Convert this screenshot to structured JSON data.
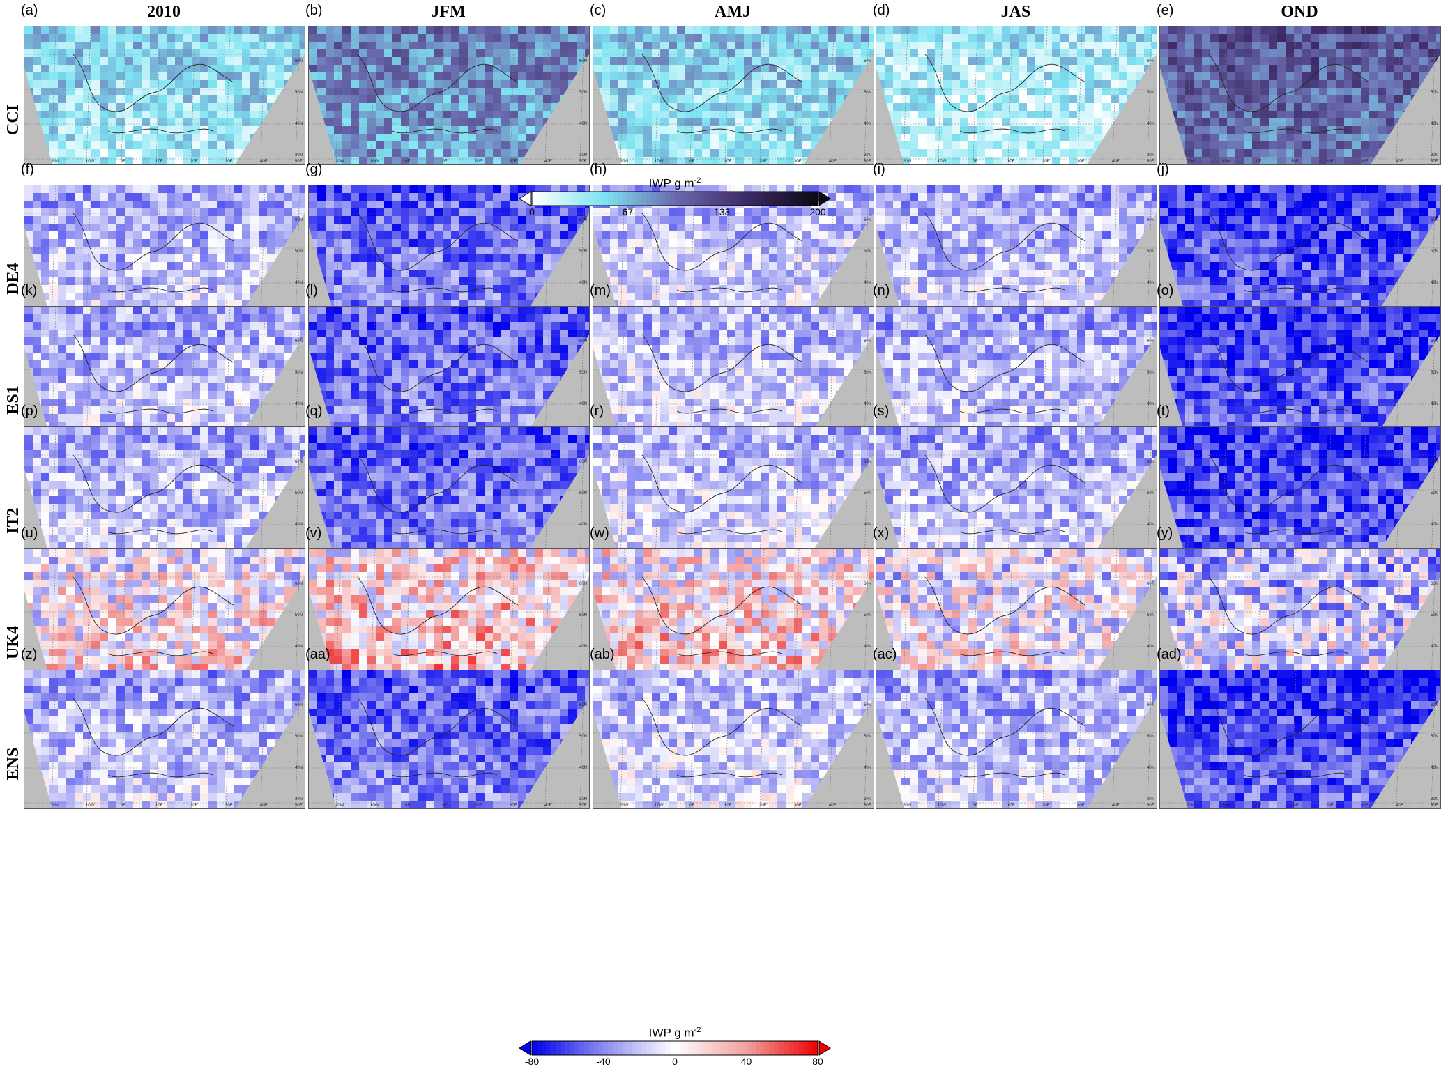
{
  "columns": [
    "2010",
    "JFM",
    "AMJ",
    "JAS",
    "OND"
  ],
  "rows": [
    {
      "name": "CCI",
      "labels": [
        "(a)",
        "(b)",
        "(c)",
        "(d)",
        "(e)"
      ]
    },
    {
      "name": "DE4",
      "labels": [
        "(f)",
        "(g)",
        "(h)",
        "(i)",
        "(j)"
      ]
    },
    {
      "name": "ES1",
      "labels": [
        "(k)",
        "(l)",
        "(m)",
        "(n)",
        "(o)"
      ]
    },
    {
      "name": "IT2",
      "labels": [
        "(p)",
        "(q)",
        "(r)",
        "(s)",
        "(t)"
      ]
    },
    {
      "name": "UK4",
      "labels": [
        "(u)",
        "(v)",
        "(w)",
        "(x)",
        "(y)"
      ]
    },
    {
      "name": "ENS",
      "labels": [
        "(z)",
        "(aa)",
        "(ab)",
        "(ac)",
        "(ad)"
      ]
    }
  ],
  "colorbars": {
    "absolute": {
      "title": "IWP g m",
      "title_exp": "-2",
      "ticks": [
        "0",
        "67",
        "133",
        "200"
      ],
      "range": [
        0,
        200
      ],
      "colors": [
        "#ffffff",
        "#7fe4f2",
        "#6a6ab0",
        "#3d2a66",
        "#0a0a14"
      ],
      "extend": "both"
    },
    "difference": {
      "title": "IWP g m",
      "title_exp": "-2",
      "ticks": [
        "-80",
        "-40",
        "0",
        "40",
        "80"
      ],
      "range": [
        -80,
        80
      ],
      "colors": [
        "#0000ee",
        "#8c8cf2",
        "#ffffff",
        "#f2a0a0",
        "#ee0000"
      ],
      "extend": "both"
    }
  },
  "chart_data": {
    "type": "heatmap",
    "title": "",
    "description_units": "IWP g m-2",
    "x": [
      "2010",
      "JFM",
      "AMJ",
      "JAS",
      "OND"
    ],
    "y": [
      "CCI",
      "DE4",
      "ES1",
      "IT2",
      "UK4",
      "ENS"
    ],
    "map_axis_labels": {
      "lon": [
        "20W",
        "10W",
        "0E",
        "10E",
        "20E",
        "30E",
        "40E",
        "50E"
      ],
      "lat": [
        "30N",
        "40N",
        "50N",
        "60N"
      ]
    },
    "panel_colorbar": {
      "CCI": "absolute",
      "DE4": "difference",
      "ES1": "difference",
      "IT2": "difference",
      "UK4": "difference",
      "ENS": "difference"
    }
  }
}
